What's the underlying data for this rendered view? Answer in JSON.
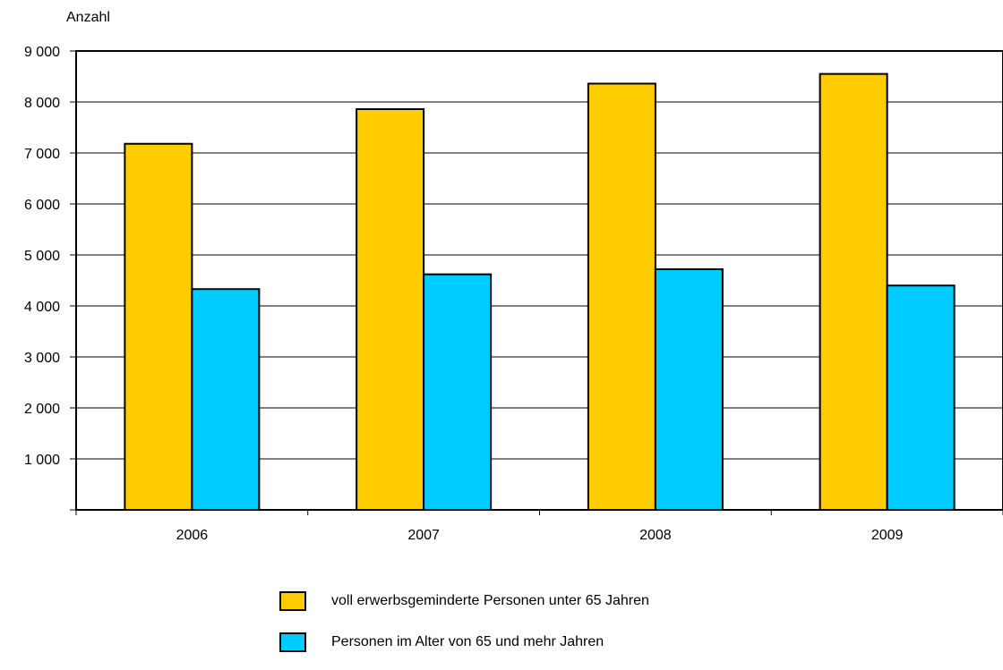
{
  "chart_data": {
    "type": "bar",
    "ylabel": "Anzahl",
    "categories": [
      "2006",
      "2007",
      "2008",
      "2009"
    ],
    "ylim": [
      0,
      9000
    ],
    "ytick_values": [
      1000,
      2000,
      3000,
      4000,
      5000,
      6000,
      7000,
      8000,
      9000
    ],
    "ytick_labels": [
      "1 000",
      "2 000",
      "3 000",
      "4 000",
      "5 000",
      "6 000",
      "7 000",
      "8 000",
      "9 000"
    ],
    "grid": true,
    "legend_position": "bottom",
    "series": [
      {
        "name": "voll erwerbsgeminderte Personen unter 65 Jahren",
        "color": "#FFCC00",
        "values": [
          7180,
          7860,
          8360,
          8550
        ]
      },
      {
        "name": "Personen im Alter von 65 und mehr Jahren",
        "color": "#00CCFF",
        "values": [
          4330,
          4620,
          4720,
          4400
        ]
      }
    ]
  }
}
